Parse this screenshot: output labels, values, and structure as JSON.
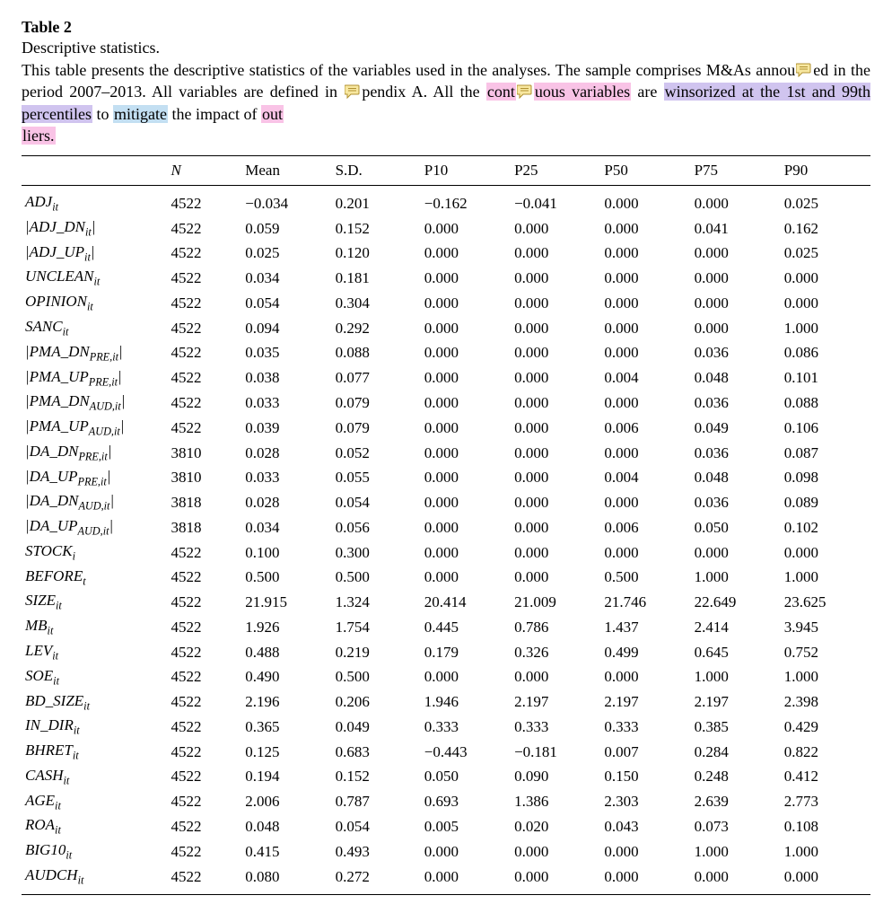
{
  "header": {
    "table_label": "Table 2",
    "subtitle": "Descriptive statistics."
  },
  "caption": {
    "seg1": "This table presents the descriptive statistics of the variables used in the analyses. The sample comprises M&As annou",
    "seg2_after_icon1": "ed in the period 2007–2013. All variables are defined in ",
    "seg3_after_icon2": "pendix A",
    "seg4": ". All the ",
    "hl1_a": "cont",
    "hl1_b": "uous variables",
    "seg5": " are ",
    "hl2": "winsorized at the 1st and 99th percentiles",
    "seg6": " to ",
    "hl3": "mitigate",
    "seg7": " the impact of ",
    "hl4_a": "out",
    "hl4_b": "liers.",
    "comment_icon_fill": "#f7e7a0",
    "comment_icon_stroke": "#b09030",
    "highlight_colors": {
      "pink": "#f9c3e6",
      "violet": "#d0c4ef",
      "blue": "#c3dff2"
    }
  },
  "columns": [
    "",
    "N",
    "Mean",
    "S.D.",
    "P10",
    "P25",
    "P50",
    "P75",
    "P90"
  ],
  "rows": [
    {
      "var_html": "ADJ<sub>it</sub>",
      "cells": [
        "4522",
        "−0.034",
        "0.201",
        "−0.162",
        "−0.041",
        "0.000",
        "0.000",
        "0.025"
      ]
    },
    {
      "var_html": "|ADJ_DN<sub>it</sub>|",
      "cells": [
        "4522",
        "0.059",
        "0.152",
        "0.000",
        "0.000",
        "0.000",
        "0.041",
        "0.162"
      ]
    },
    {
      "var_html": "|ADJ_UP<sub>it</sub>|",
      "cells": [
        "4522",
        "0.025",
        "0.120",
        "0.000",
        "0.000",
        "0.000",
        "0.000",
        "0.025"
      ]
    },
    {
      "var_html": "UNCLEAN<sub>it</sub>",
      "cells": [
        "4522",
        "0.034",
        "0.181",
        "0.000",
        "0.000",
        "0.000",
        "0.000",
        "0.000"
      ]
    },
    {
      "var_html": "OPINION<sub>it</sub>",
      "cells": [
        "4522",
        "0.054",
        "0.304",
        "0.000",
        "0.000",
        "0.000",
        "0.000",
        "0.000"
      ]
    },
    {
      "var_html": "SANC<sub>it</sub>",
      "cells": [
        "4522",
        "0.094",
        "0.292",
        "0.000",
        "0.000",
        "0.000",
        "0.000",
        "1.000"
      ]
    },
    {
      "var_html": "|PMA_DN<sub>PRE,it</sub>|",
      "cells": [
        "4522",
        "0.035",
        "0.088",
        "0.000",
        "0.000",
        "0.000",
        "0.036",
        "0.086"
      ]
    },
    {
      "var_html": "|PMA_UP<sub>PRE,it</sub>|",
      "cells": [
        "4522",
        "0.038",
        "0.077",
        "0.000",
        "0.000",
        "0.004",
        "0.048",
        "0.101"
      ]
    },
    {
      "var_html": "|PMA_DN<sub>AUD,it</sub>|",
      "cells": [
        "4522",
        "0.033",
        "0.079",
        "0.000",
        "0.000",
        "0.000",
        "0.036",
        "0.088"
      ]
    },
    {
      "var_html": "|PMA_UP<sub>AUD,it</sub>|",
      "cells": [
        "4522",
        "0.039",
        "0.079",
        "0.000",
        "0.000",
        "0.006",
        "0.049",
        "0.106"
      ]
    },
    {
      "var_html": "|DA_DN<sub>PRE,it</sub>|",
      "cells": [
        "3810",
        "0.028",
        "0.052",
        "0.000",
        "0.000",
        "0.000",
        "0.036",
        "0.087"
      ]
    },
    {
      "var_html": "|DA_UP<sub>PRE,it</sub>|",
      "cells": [
        "3810",
        "0.033",
        "0.055",
        "0.000",
        "0.000",
        "0.004",
        "0.048",
        "0.098"
      ]
    },
    {
      "var_html": "|DA_DN<sub>AUD,it</sub>|",
      "cells": [
        "3818",
        "0.028",
        "0.054",
        "0.000",
        "0.000",
        "0.000",
        "0.036",
        "0.089"
      ]
    },
    {
      "var_html": "|DA_UP<sub>AUD,it</sub>|",
      "cells": [
        "3818",
        "0.034",
        "0.056",
        "0.000",
        "0.000",
        "0.006",
        "0.050",
        "0.102"
      ]
    },
    {
      "var_html": "STOCK<sub>i</sub>",
      "cells": [
        "4522",
        "0.100",
        "0.300",
        "0.000",
        "0.000",
        "0.000",
        "0.000",
        "0.000"
      ]
    },
    {
      "var_html": "BEFORE<sub>t</sub>",
      "cells": [
        "4522",
        "0.500",
        "0.500",
        "0.000",
        "0.000",
        "0.500",
        "1.000",
        "1.000"
      ]
    },
    {
      "var_html": "SIZE<sub>it</sub>",
      "cells": [
        "4522",
        "21.915",
        "1.324",
        "20.414",
        "21.009",
        "21.746",
        "22.649",
        "23.625"
      ]
    },
    {
      "var_html": "MB<sub>it</sub>",
      "cells": [
        "4522",
        "1.926",
        "1.754",
        "0.445",
        "0.786",
        "1.437",
        "2.414",
        "3.945"
      ]
    },
    {
      "var_html": "LEV<sub>it</sub>",
      "cells": [
        "4522",
        "0.488",
        "0.219",
        "0.179",
        "0.326",
        "0.499",
        "0.645",
        "0.752"
      ]
    },
    {
      "var_html": "SOE<sub>it</sub>",
      "cells": [
        "4522",
        "0.490",
        "0.500",
        "0.000",
        "0.000",
        "0.000",
        "1.000",
        "1.000"
      ]
    },
    {
      "var_html": "BD_SIZE<sub>it</sub>",
      "cells": [
        "4522",
        "2.196",
        "0.206",
        "1.946",
        "2.197",
        "2.197",
        "2.197",
        "2.398"
      ]
    },
    {
      "var_html": "IN_DIR<sub>it</sub>",
      "cells": [
        "4522",
        "0.365",
        "0.049",
        "0.333",
        "0.333",
        "0.333",
        "0.385",
        "0.429"
      ]
    },
    {
      "var_html": "BHRET<sub>it</sub>",
      "cells": [
        "4522",
        "0.125",
        "0.683",
        "−0.443",
        "−0.181",
        "0.007",
        "0.284",
        "0.822"
      ]
    },
    {
      "var_html": "CASH<sub>it</sub>",
      "cells": [
        "4522",
        "0.194",
        "0.152",
        "0.050",
        "0.090",
        "0.150",
        "0.248",
        "0.412"
      ]
    },
    {
      "var_html": "AGE<sub>it</sub>",
      "cells": [
        "4522",
        "2.006",
        "0.787",
        "0.693",
        "1.386",
        "2.303",
        "2.639",
        "2.773"
      ]
    },
    {
      "var_html": "ROA<sub>it</sub>",
      "cells": [
        "4522",
        "0.048",
        "0.054",
        "0.005",
        "0.020",
        "0.043",
        "0.073",
        "0.108"
      ]
    },
    {
      "var_html": "BIG10<sub>it</sub>",
      "cells": [
        "4522",
        "0.415",
        "0.493",
        "0.000",
        "0.000",
        "0.000",
        "1.000",
        "1.000"
      ]
    },
    {
      "var_html": "AUDCH<sub>it</sub>",
      "cells": [
        "4522",
        "0.080",
        "0.272",
        "0.000",
        "0.000",
        "0.000",
        "0.000",
        "0.000"
      ]
    }
  ]
}
